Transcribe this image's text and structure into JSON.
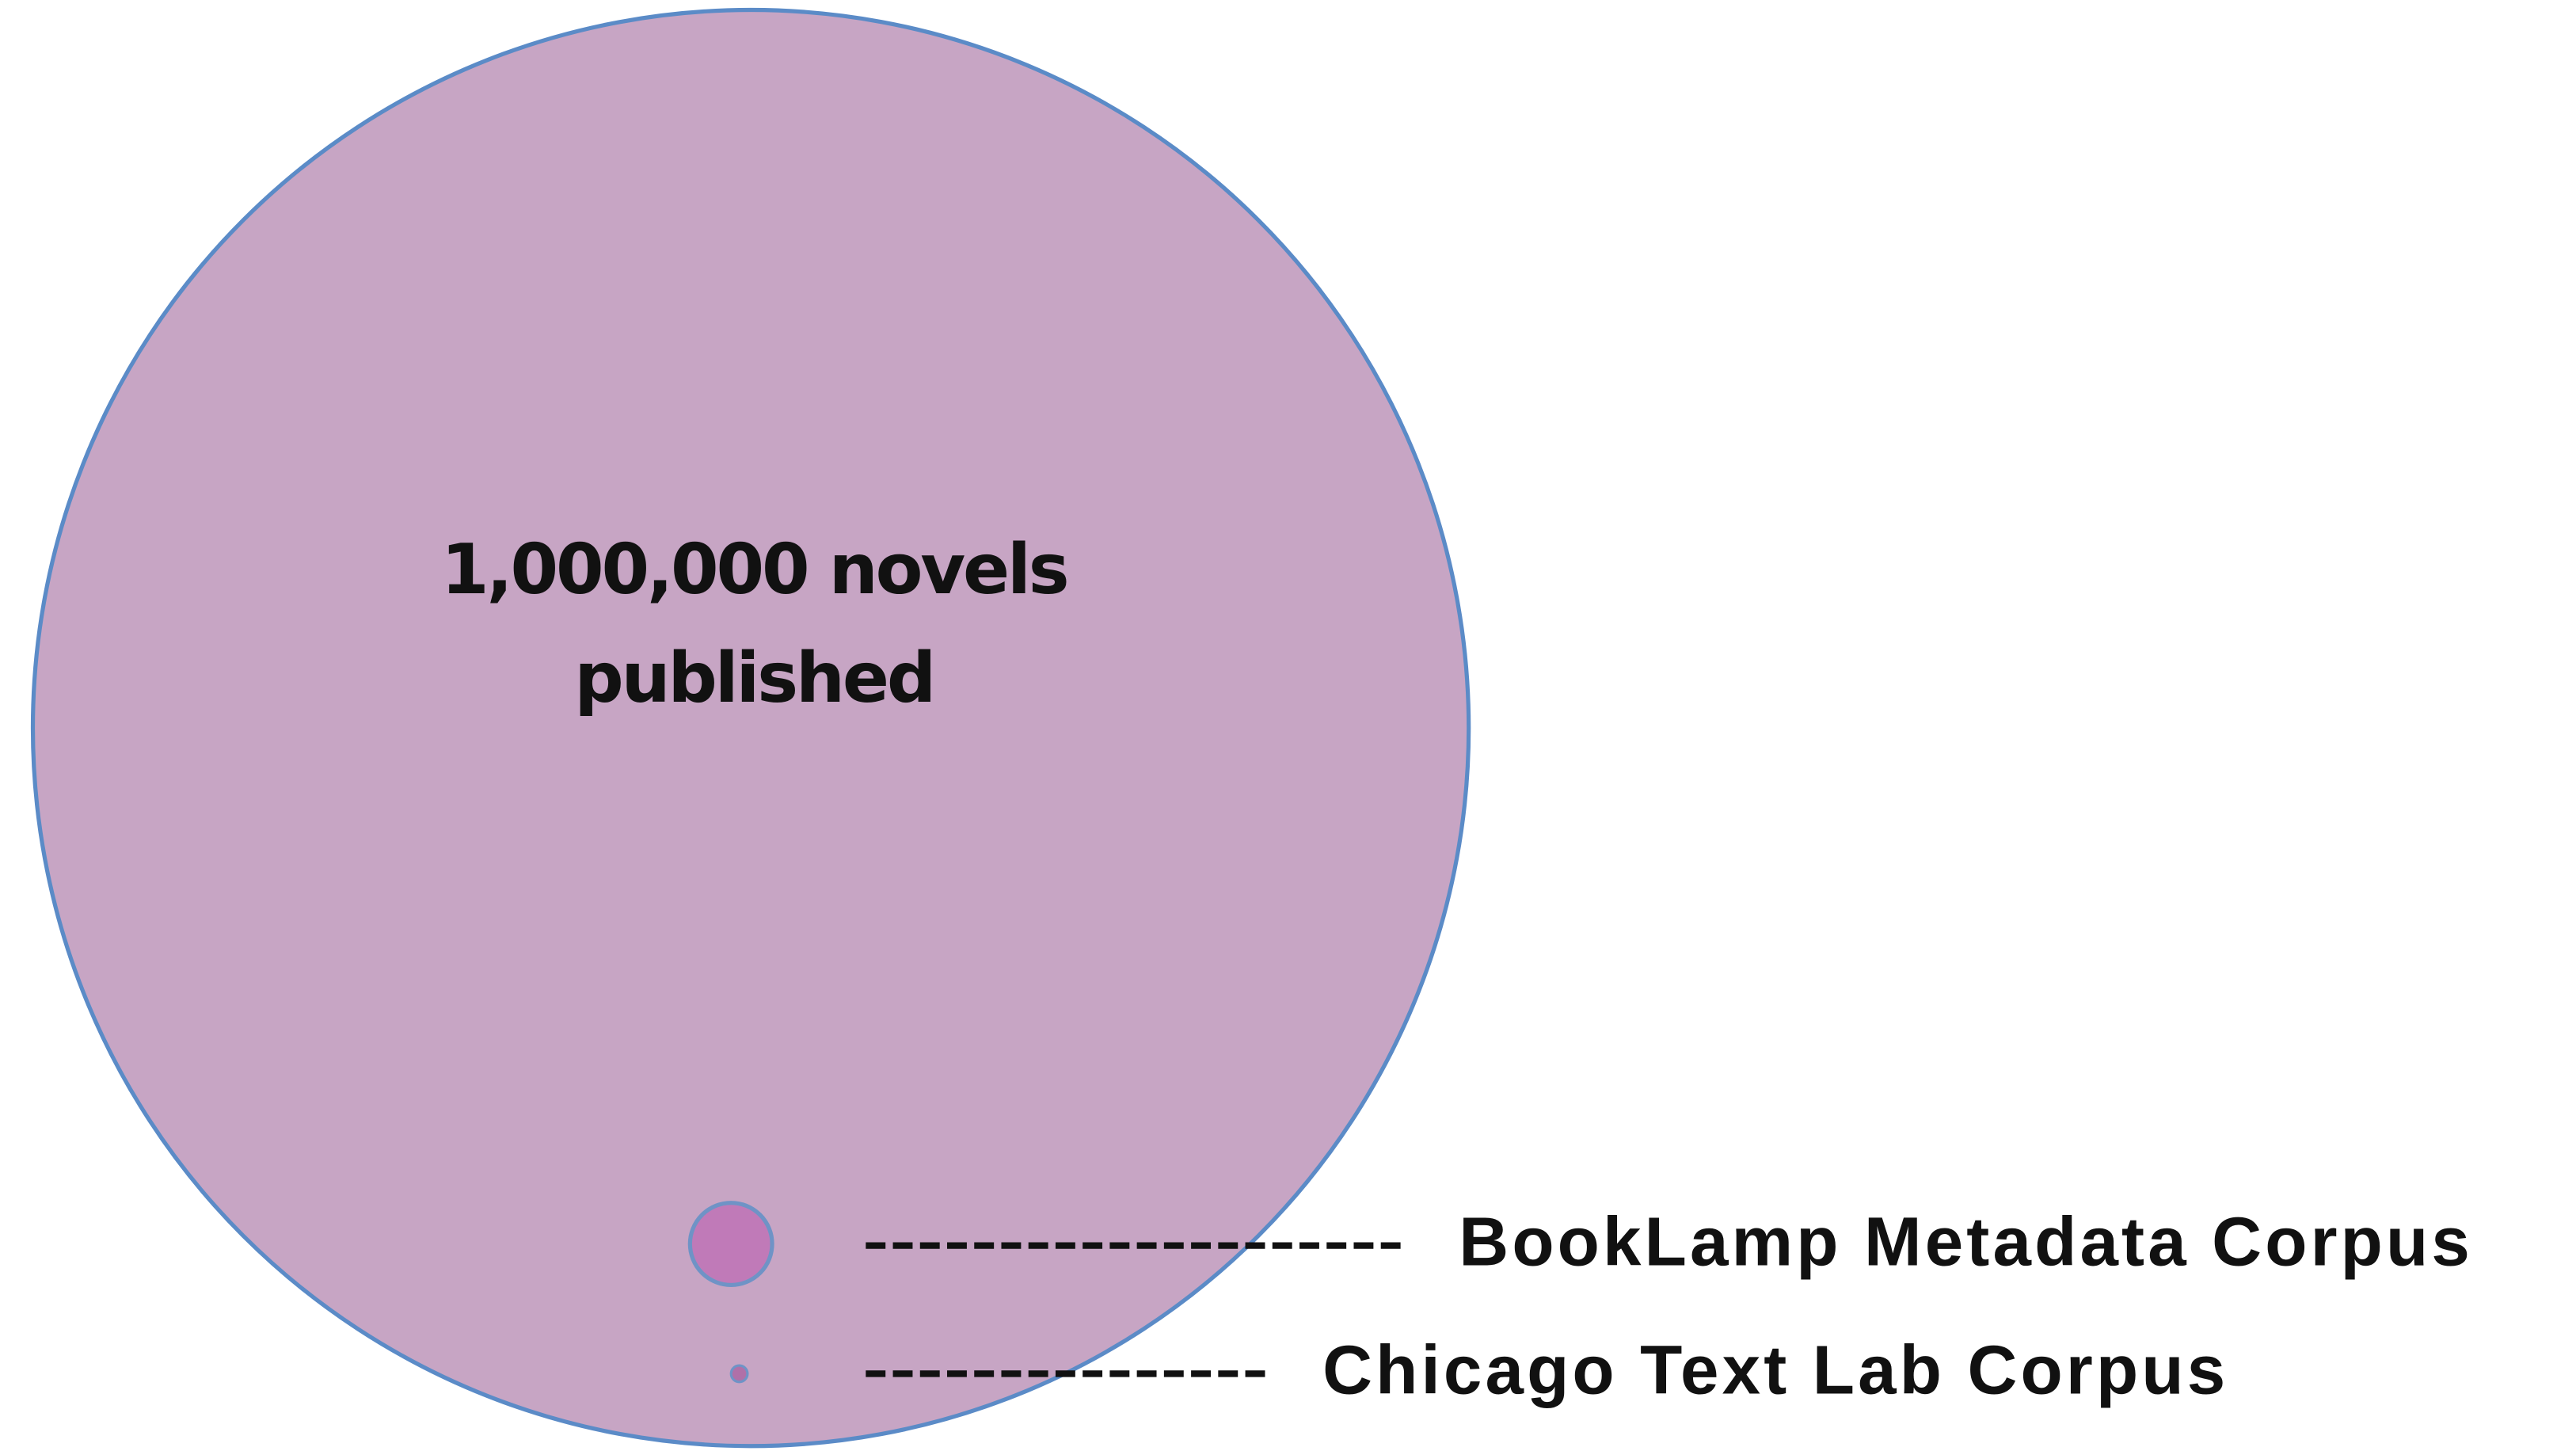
{
  "nodes": [
    {
      "label": [
        "1,000,000 novels",
        "published"
      ]
    },
    {
      "label": "BookLamp Metadata Corpus"
    },
    {
      "label": "Chicago Text Lab Corpus"
    }
  ]
}
